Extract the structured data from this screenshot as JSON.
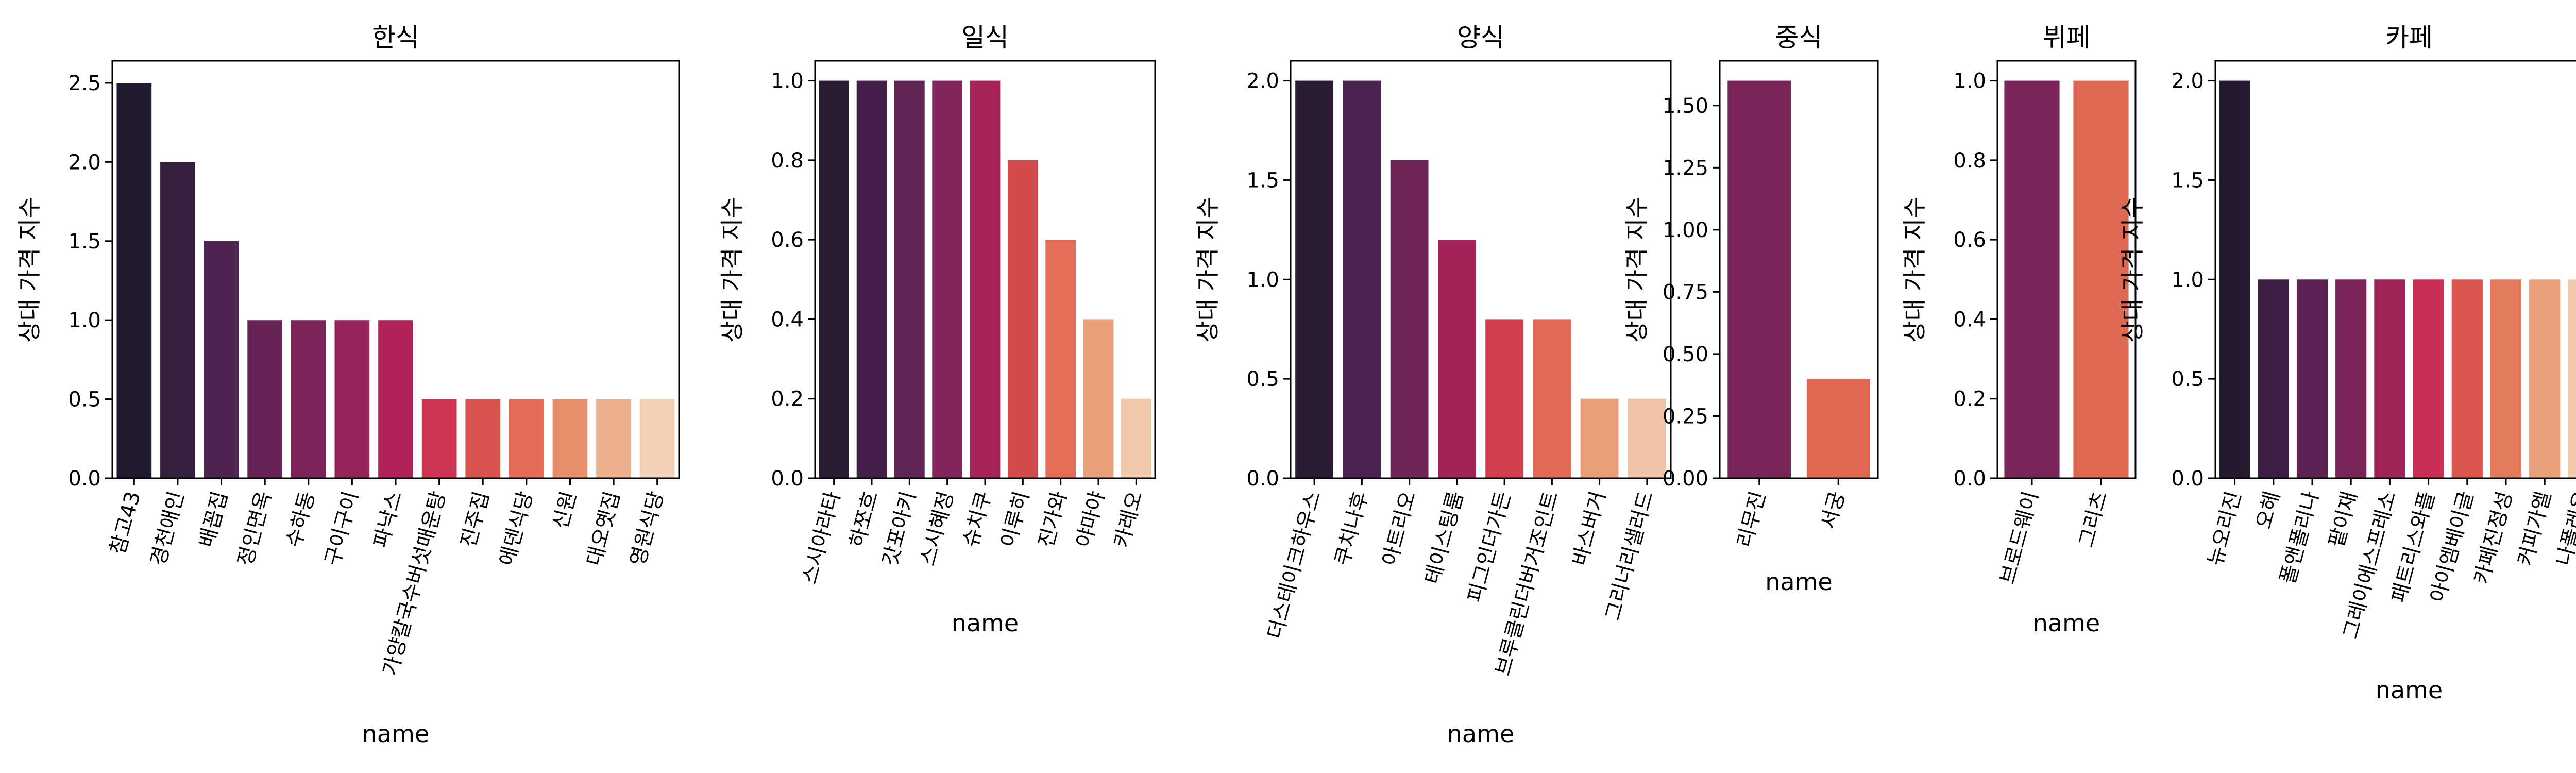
{
  "chart_data": [
    {
      "type": "bar",
      "title": "한식",
      "xlabel": "name",
      "ylabel": "상대 가격 지수",
      "ylim": [
        0,
        2.64
      ],
      "yticks": [
        "0.0",
        "0.5",
        "1.0",
        "1.5",
        "2.0",
        "2.5"
      ],
      "categories": [
        "참고43",
        "경천애인",
        "배꼽집",
        "정인면옥",
        "수하동",
        "구이구이",
        "파낙스",
        "가양칼국수버섯매운탕",
        "진주집",
        "에덴식당",
        "신원",
        "대오옛집",
        "영원식당"
      ],
      "values": [
        2.5,
        2.0,
        1.5,
        1.0,
        1.0,
        1.0,
        1.0,
        0.5,
        0.5,
        0.5,
        0.5,
        0.5,
        0.5
      ],
      "colors": [
        "#201a2f",
        "#35203f",
        "#4e2450",
        "#662556",
        "#7c2459",
        "#96245a",
        "#b12259",
        "#cc3652",
        "#d9514c",
        "#e36b57",
        "#e88f6a",
        "#ecaf8c",
        "#f1d0b5"
      ],
      "grid": false
    },
    {
      "type": "bar",
      "title": "일식",
      "xlabel": "name",
      "ylabel": "상대 가격 지수",
      "ylim": [
        0,
        1.05
      ],
      "yticks": [
        "0.0",
        "0.2",
        "0.4",
        "0.6",
        "0.8",
        "1.0"
      ],
      "categories": [
        "스시아라타",
        "하쪼흐",
        "갓포아키",
        "스시혜정",
        "슈치쿠",
        "이루히",
        "진가와",
        "야마야",
        "카레오"
      ],
      "values": [
        1.0,
        1.0,
        1.0,
        1.0,
        1.0,
        0.8,
        0.6,
        0.4,
        0.2
      ],
      "colors": [
        "#291b32",
        "#441f49",
        "#612555",
        "#81255a",
        "#a62459",
        "#d34a4d",
        "#e36d56",
        "#e9a07a",
        "#f1c9ad"
      ],
      "grid": false
    },
    {
      "type": "bar",
      "title": "양식",
      "xlabel": "name",
      "ylabel": "상대 가격 지수",
      "ylim": [
        0,
        2.1
      ],
      "yticks": [
        "0.0",
        "0.5",
        "1.0",
        "1.5",
        "2.0"
      ],
      "categories": [
        "더스테이크하우스",
        "쿠치나후",
        "아트리오",
        "테이스팅룸",
        "피그인더가든",
        "브루클린더버거조인트",
        "바스버거",
        "그리너리샐러드"
      ],
      "values": [
        2.0,
        2.0,
        1.6,
        1.2,
        0.8,
        0.8,
        0.4,
        0.4
      ],
      "colors": [
        "#2a1b33",
        "#4a2250",
        "#702559",
        "#a3245a",
        "#cf3f4e",
        "#e06a55",
        "#e99e78",
        "#efc4a8"
      ],
      "grid": false
    },
    {
      "type": "bar",
      "title": "중식",
      "xlabel": "name",
      "ylabel": "상대 가격 지수",
      "ylim": [
        0,
        1.68
      ],
      "yticks": [
        "0.00",
        "0.25",
        "0.50",
        "0.75",
        "1.00",
        "1.25",
        "1.50"
      ],
      "categories": [
        "리무진",
        "서궁"
      ],
      "values": [
        1.6,
        0.4
      ],
      "colors": [
        "#7a2559",
        "#df6853"
      ],
      "grid": false
    },
    {
      "type": "bar",
      "title": "뷔페",
      "xlabel": "name",
      "ylabel": "상대 가격 지수",
      "ylim": [
        0,
        1.05
      ],
      "yticks": [
        "0.0",
        "0.2",
        "0.4",
        "0.6",
        "0.8",
        "1.0"
      ],
      "categories": [
        "브로드웨이",
        "그리츠"
      ],
      "values": [
        1.0,
        1.0
      ],
      "colors": [
        "#7a2559",
        "#df6853"
      ],
      "grid": false
    },
    {
      "type": "bar",
      "title": "카페",
      "xlabel": "name",
      "ylabel": "상대 가격 지수",
      "ylim": [
        0,
        2.1
      ],
      "yticks": [
        "0.0",
        "0.5",
        "1.0",
        "1.5",
        "2.0"
      ],
      "categories": [
        "뉴오리진",
        "오헤",
        "폴앤폴리나",
        "팥이재",
        "그레이에스프레소",
        "패트리스와플",
        "아이엠베이글",
        "카페진정성",
        "커피가엘",
        "나폴레옹"
      ],
      "values": [
        2.0,
        1.0,
        1.0,
        1.0,
        1.0,
        1.0,
        1.0,
        1.0,
        1.0,
        1.0
      ],
      "colors": [
        "#231a30",
        "#3d1f46",
        "#5a2354",
        "#792559",
        "#a1245a",
        "#c92e54",
        "#da564c",
        "#e37b5b",
        "#eaa17a",
        "#f1caa9"
      ],
      "grid": false
    }
  ]
}
